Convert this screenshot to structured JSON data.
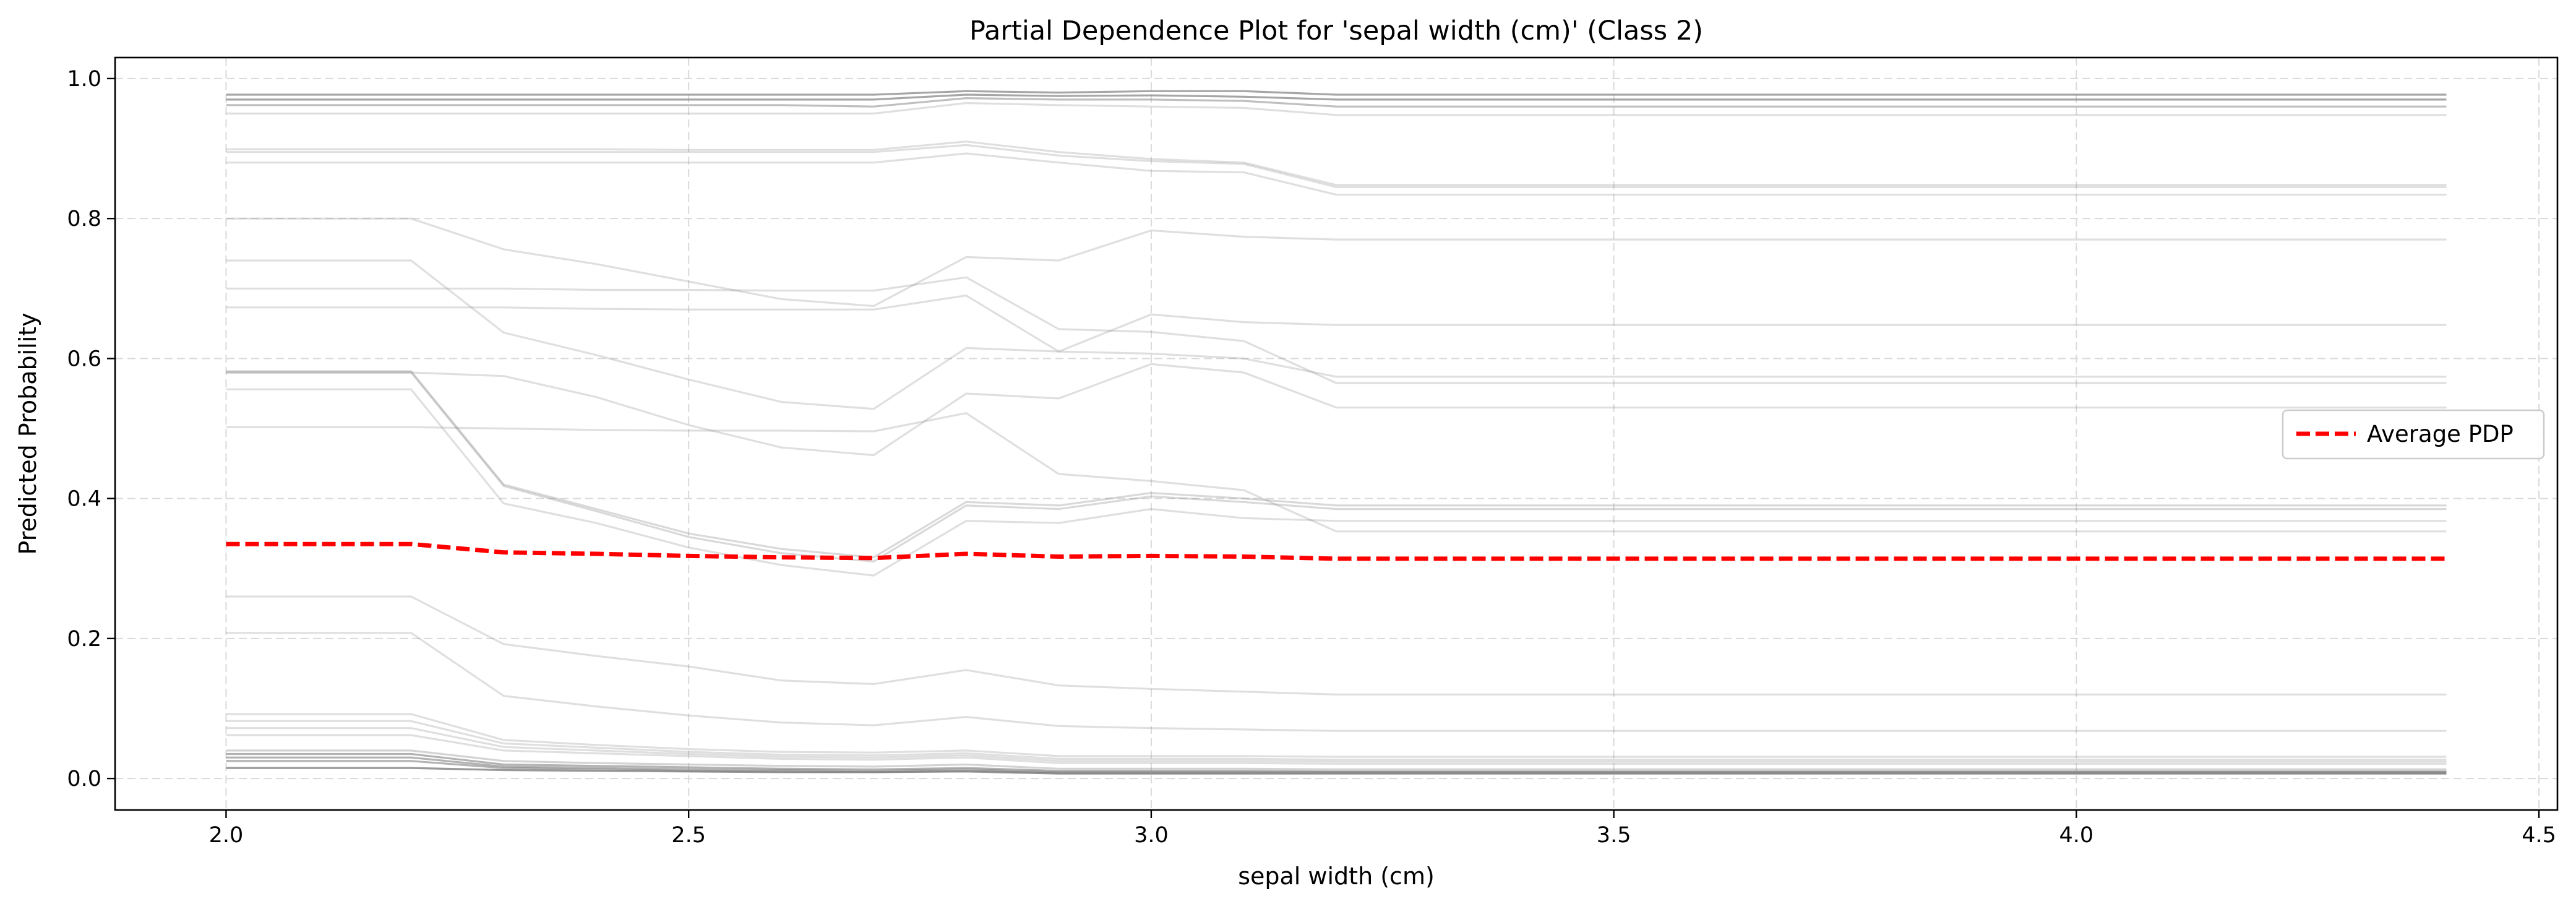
{
  "chart_data": {
    "type": "line",
    "title": "Partial Dependence Plot for 'sepal width (cm)' (Class 2)",
    "xlabel": "sepal width (cm)",
    "ylabel": "Predicted Probability",
    "xlim": [
      1.88,
      4.52
    ],
    "ylim": [
      -0.045,
      1.03
    ],
    "xticks": [
      2.0,
      2.5,
      3.0,
      3.5,
      4.0,
      4.5
    ],
    "xtick_labels": [
      "2.0",
      "2.5",
      "3.0",
      "3.5",
      "4.0",
      "4.5"
    ],
    "yticks": [
      0.0,
      0.2,
      0.4,
      0.6,
      0.8,
      1.0
    ],
    "ytick_labels": [
      "0.0",
      "0.2",
      "0.4",
      "0.6",
      "0.8",
      "1.0"
    ],
    "grid": true,
    "legend_position": "center-right",
    "x": [
      2.0,
      2.2,
      2.3,
      2.4,
      2.5,
      2.6,
      2.7,
      2.8,
      2.9,
      3.0,
      3.1,
      3.2,
      3.3,
      3.4,
      3.5,
      3.6,
      3.7,
      3.8,
      3.9,
      4.0,
      4.1,
      4.2,
      4.4
    ],
    "ice_color": "#808080",
    "ice_lines": [
      {
        "opacity": 0.7,
        "values": [
          0.977,
          0.977,
          0.977,
          0.977,
          0.977,
          0.977,
          0.977,
          0.982,
          0.98,
          0.982,
          0.982,
          0.977,
          0.977,
          0.977,
          0.977,
          0.977,
          0.977,
          0.977,
          0.977,
          0.977,
          0.977,
          0.977,
          0.977
        ]
      },
      {
        "opacity": 0.7,
        "values": [
          0.97,
          0.97,
          0.97,
          0.97,
          0.97,
          0.97,
          0.97,
          0.977,
          0.975,
          0.976,
          0.974,
          0.97,
          0.97,
          0.97,
          0.97,
          0.97,
          0.97,
          0.97,
          0.97,
          0.97,
          0.97,
          0.97,
          0.97
        ]
      },
      {
        "opacity": 0.5,
        "values": [
          0.962,
          0.962,
          0.962,
          0.962,
          0.962,
          0.962,
          0.96,
          0.972,
          0.97,
          0.97,
          0.968,
          0.96,
          0.96,
          0.96,
          0.96,
          0.96,
          0.96,
          0.96,
          0.96,
          0.96,
          0.96,
          0.96,
          0.96
        ]
      },
      {
        "opacity": 0.25,
        "values": [
          0.95,
          0.95,
          0.95,
          0.95,
          0.95,
          0.95,
          0.95,
          0.965,
          0.962,
          0.96,
          0.958,
          0.948,
          0.948,
          0.948,
          0.948,
          0.948,
          0.948,
          0.948,
          0.948,
          0.948,
          0.948,
          0.948,
          0.948
        ]
      },
      {
        "opacity": 0.25,
        "values": [
          0.899,
          0.899,
          0.899,
          0.899,
          0.898,
          0.898,
          0.898,
          0.91,
          0.895,
          0.885,
          0.88,
          0.848,
          0.848,
          0.848,
          0.848,
          0.848,
          0.848,
          0.848,
          0.848,
          0.848,
          0.848,
          0.848,
          0.848
        ]
      },
      {
        "opacity": 0.25,
        "values": [
          0.895,
          0.895,
          0.895,
          0.895,
          0.895,
          0.895,
          0.895,
          0.905,
          0.89,
          0.882,
          0.878,
          0.845,
          0.845,
          0.845,
          0.845,
          0.845,
          0.845,
          0.845,
          0.845,
          0.845,
          0.845,
          0.845,
          0.845
        ]
      },
      {
        "opacity": 0.25,
        "values": [
          0.88,
          0.88,
          0.88,
          0.88,
          0.88,
          0.88,
          0.88,
          0.893,
          0.88,
          0.868,
          0.866,
          0.834,
          0.834,
          0.834,
          0.834,
          0.834,
          0.834,
          0.834,
          0.834,
          0.834,
          0.834,
          0.834,
          0.834
        ]
      },
      {
        "opacity": 0.25,
        "values": [
          0.8,
          0.8,
          0.756,
          0.735,
          0.71,
          0.685,
          0.675,
          0.745,
          0.74,
          0.783,
          0.774,
          0.77,
          0.77,
          0.77,
          0.77,
          0.77,
          0.77,
          0.77,
          0.77,
          0.77,
          0.77,
          0.77,
          0.77
        ]
      },
      {
        "opacity": 0.25,
        "values": [
          0.74,
          0.74,
          0.637,
          0.605,
          0.57,
          0.538,
          0.528,
          0.615,
          0.61,
          0.663,
          0.652,
          0.648,
          0.648,
          0.648,
          0.648,
          0.648,
          0.648,
          0.648,
          0.648,
          0.648,
          0.648,
          0.648,
          0.648
        ]
      },
      {
        "opacity": 0.25,
        "values": [
          0.7,
          0.7,
          0.7,
          0.698,
          0.698,
          0.697,
          0.697,
          0.716,
          0.642,
          0.638,
          0.625,
          0.565,
          0.565,
          0.565,
          0.565,
          0.565,
          0.565,
          0.565,
          0.565,
          0.565,
          0.565,
          0.565,
          0.565
        ]
      },
      {
        "opacity": 0.25,
        "values": [
          0.673,
          0.673,
          0.673,
          0.671,
          0.67,
          0.67,
          0.67,
          0.69,
          0.61,
          0.607,
          0.6,
          0.574,
          0.574,
          0.574,
          0.574,
          0.574,
          0.574,
          0.574,
          0.574,
          0.574,
          0.574,
          0.574,
          0.574
        ]
      },
      {
        "opacity": 0.3,
        "values": [
          0.582,
          0.582,
          0.42,
          0.385,
          0.35,
          0.328,
          0.316,
          0.395,
          0.39,
          0.408,
          0.4,
          0.39,
          0.39,
          0.39,
          0.39,
          0.39,
          0.39,
          0.39,
          0.39,
          0.39,
          0.39,
          0.39,
          0.39
        ]
      },
      {
        "opacity": 0.3,
        "values": [
          0.58,
          0.58,
          0.418,
          0.382,
          0.345,
          0.322,
          0.31,
          0.39,
          0.385,
          0.403,
          0.395,
          0.385,
          0.385,
          0.385,
          0.385,
          0.385,
          0.385,
          0.385,
          0.385,
          0.385,
          0.385,
          0.385,
          0.385
        ]
      },
      {
        "opacity": 0.25,
        "values": [
          0.556,
          0.556,
          0.393,
          0.365,
          0.33,
          0.305,
          0.29,
          0.368,
          0.365,
          0.385,
          0.372,
          0.368,
          0.368,
          0.368,
          0.368,
          0.368,
          0.368,
          0.368,
          0.368,
          0.368,
          0.368,
          0.368,
          0.368
        ]
      },
      {
        "opacity": 0.25,
        "values": [
          0.502,
          0.502,
          0.5,
          0.498,
          0.497,
          0.497,
          0.496,
          0.522,
          0.435,
          0.425,
          0.412,
          0.353,
          0.353,
          0.353,
          0.353,
          0.353,
          0.353,
          0.353,
          0.353,
          0.353,
          0.353,
          0.353,
          0.353
        ]
      },
      {
        "opacity": 0.25,
        "values": [
          0.58,
          0.58,
          0.575,
          0.545,
          0.505,
          0.473,
          0.462,
          0.55,
          0.543,
          0.592,
          0.58,
          0.53,
          0.53,
          0.53,
          0.53,
          0.53,
          0.53,
          0.53,
          0.53,
          0.53,
          0.53,
          0.53,
          0.53
        ]
      },
      {
        "opacity": 0.25,
        "values": [
          0.26,
          0.26,
          0.192,
          0.175,
          0.16,
          0.14,
          0.135,
          0.155,
          0.133,
          0.128,
          0.124,
          0.12,
          0.12,
          0.12,
          0.12,
          0.12,
          0.12,
          0.12,
          0.12,
          0.12,
          0.12,
          0.12,
          0.12
        ]
      },
      {
        "opacity": 0.25,
        "values": [
          0.208,
          0.208,
          0.118,
          0.103,
          0.09,
          0.08,
          0.076,
          0.088,
          0.075,
          0.072,
          0.07,
          0.068,
          0.068,
          0.068,
          0.068,
          0.068,
          0.068,
          0.068,
          0.068,
          0.068,
          0.068,
          0.068,
          0.068
        ]
      },
      {
        "opacity": 0.25,
        "values": [
          0.092,
          0.092,
          0.055,
          0.048,
          0.042,
          0.038,
          0.037,
          0.04,
          0.032,
          0.032,
          0.032,
          0.031,
          0.031,
          0.031,
          0.031,
          0.031,
          0.031,
          0.031,
          0.031,
          0.031,
          0.031,
          0.031,
          0.031
        ]
      },
      {
        "opacity": 0.25,
        "values": [
          0.082,
          0.082,
          0.05,
          0.044,
          0.038,
          0.034,
          0.033,
          0.036,
          0.028,
          0.028,
          0.028,
          0.027,
          0.027,
          0.027,
          0.027,
          0.027,
          0.027,
          0.027,
          0.027,
          0.027,
          0.027,
          0.027,
          0.027
        ]
      },
      {
        "opacity": 0.25,
        "values": [
          0.072,
          0.072,
          0.045,
          0.04,
          0.035,
          0.031,
          0.03,
          0.033,
          0.025,
          0.025,
          0.025,
          0.024,
          0.024,
          0.024,
          0.024,
          0.024,
          0.024,
          0.024,
          0.024,
          0.024,
          0.024,
          0.024,
          0.024
        ]
      },
      {
        "opacity": 0.25,
        "values": [
          0.062,
          0.062,
          0.04,
          0.036,
          0.032,
          0.028,
          0.027,
          0.03,
          0.022,
          0.022,
          0.022,
          0.021,
          0.021,
          0.021,
          0.021,
          0.021,
          0.021,
          0.021,
          0.021,
          0.021,
          0.021,
          0.021,
          0.021
        ]
      },
      {
        "opacity": 0.35,
        "values": [
          0.04,
          0.04,
          0.025,
          0.022,
          0.02,
          0.018,
          0.017,
          0.02,
          0.014,
          0.014,
          0.014,
          0.013,
          0.013,
          0.013,
          0.013,
          0.013,
          0.013,
          0.013,
          0.013,
          0.013,
          0.013,
          0.013,
          0.013
        ]
      },
      {
        "opacity": 0.6,
        "values": [
          0.035,
          0.035,
          0.02,
          0.018,
          0.016,
          0.014,
          0.013,
          0.015,
          0.011,
          0.011,
          0.011,
          0.01,
          0.01,
          0.01,
          0.01,
          0.01,
          0.01,
          0.01,
          0.01,
          0.01,
          0.01,
          0.01,
          0.01
        ]
      },
      {
        "opacity": 0.6,
        "values": [
          0.03,
          0.03,
          0.017,
          0.015,
          0.013,
          0.012,
          0.011,
          0.013,
          0.009,
          0.009,
          0.009,
          0.009,
          0.009,
          0.009,
          0.009,
          0.009,
          0.009,
          0.009,
          0.009,
          0.009,
          0.009,
          0.009,
          0.009
        ]
      },
      {
        "opacity": 0.6,
        "values": [
          0.025,
          0.025,
          0.015,
          0.013,
          0.011,
          0.01,
          0.009,
          0.011,
          0.008,
          0.008,
          0.008,
          0.008,
          0.008,
          0.008,
          0.008,
          0.008,
          0.008,
          0.008,
          0.008,
          0.008,
          0.008,
          0.008,
          0.008
        ]
      },
      {
        "opacity": 0.8,
        "values": [
          0.015,
          0.015,
          0.012,
          0.011,
          0.01,
          0.009,
          0.009,
          0.01,
          0.007,
          0.007,
          0.007,
          0.007,
          0.007,
          0.007,
          0.007,
          0.007,
          0.007,
          0.007,
          0.007,
          0.007,
          0.007,
          0.007,
          0.007
        ]
      }
    ],
    "series": [
      {
        "name": "Average PDP",
        "color": "#ff0000",
        "style": "dashed",
        "values": [
          0.335,
          0.335,
          0.323,
          0.321,
          0.318,
          0.316,
          0.315,
          0.321,
          0.317,
          0.318,
          0.317,
          0.314,
          0.314,
          0.314,
          0.314,
          0.314,
          0.314,
          0.314,
          0.314,
          0.314,
          0.314,
          0.314,
          0.314
        ]
      }
    ]
  }
}
